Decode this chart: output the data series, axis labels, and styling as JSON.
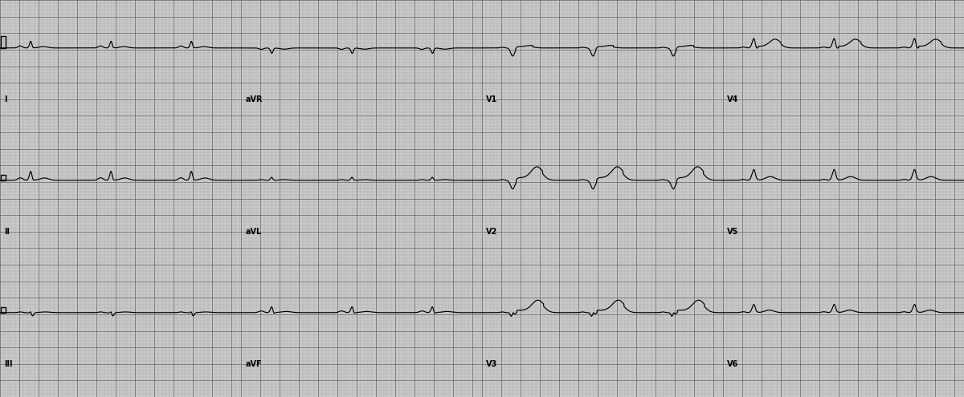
{
  "fig_width": 12.0,
  "fig_height": 4.95,
  "dpi": 100,
  "bg_color": "#c8c8c8",
  "minor_grid_color": "#909090",
  "major_grid_color": "#606060",
  "line_color": "#000000",
  "line_width": 0.85,
  "lead_layout": [
    [
      "I",
      "aVR",
      "V1",
      "V4"
    ],
    [
      "II",
      "aVL",
      "V2",
      "V5"
    ],
    [
      "III",
      "aVF",
      "V3",
      "V6"
    ]
  ],
  "hr": 72,
  "sample_rate": 500,
  "duration": 2.5,
  "ylim": [
    -2.0,
    2.0
  ],
  "signal_scale": 0.35
}
